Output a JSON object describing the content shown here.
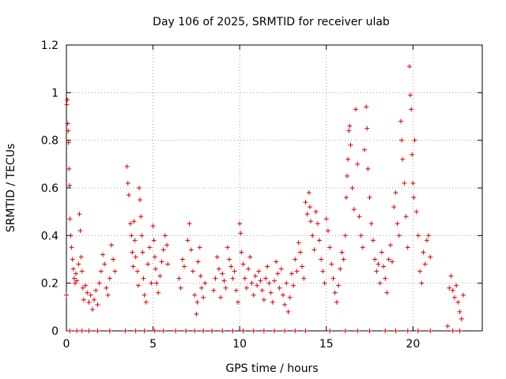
{
  "chart_data": {
    "type": "scatter",
    "title": "Day 106 of 2025, SRMTID for receiver ulab",
    "xlabel": "GPS time / hours",
    "ylabel": "SRMTID / TECUs",
    "xlim": [
      0,
      24
    ],
    "ylim": [
      0,
      1.2
    ],
    "xticks": [
      0,
      5,
      10,
      15,
      20
    ],
    "yticks": [
      0,
      0.2,
      0.4,
      0.6,
      0.8,
      1,
      1.2
    ],
    "xtick_labels": [
      "0",
      "5",
      "10",
      "15",
      "20"
    ],
    "ytick_labels": [
      "0",
      "0.2",
      "0.4",
      "0.6",
      "0.8",
      "1",
      "1.2"
    ],
    "grid": true,
    "marker": "plus",
    "color": "#e00000",
    "series": [
      {
        "name": "SRMTID",
        "points": [
          [
            0.0,
            0.15
          ],
          [
            0.02,
            0.95
          ],
          [
            0.05,
            0.97
          ],
          [
            0.08,
            0.87
          ],
          [
            0.1,
            0.84
          ],
          [
            0.12,
            0.79
          ],
          [
            0.15,
            0.68
          ],
          [
            0.18,
            0.61
          ],
          [
            0.2,
            0.47
          ],
          [
            0.25,
            0.4
          ],
          [
            0.3,
            0.35
          ],
          [
            0.35,
            0.3
          ],
          [
            0.4,
            0.26
          ],
          [
            0.45,
            0.22
          ],
          [
            0.5,
            0.2
          ],
          [
            0.55,
            0.24
          ],
          [
            0.6,
            0.21
          ],
          [
            0.7,
            0.28
          ],
          [
            0.75,
            0.49
          ],
          [
            0.8,
            0.42
          ],
          [
            0.85,
            0.31
          ],
          [
            0.9,
            0.25
          ],
          [
            0.95,
            0.18
          ],
          [
            1.0,
            0.13
          ],
          [
            1.1,
            0.19
          ],
          [
            1.2,
            0.16
          ],
          [
            1.3,
            0.12
          ],
          [
            1.4,
            0.15
          ],
          [
            1.5,
            0.09
          ],
          [
            1.6,
            0.13
          ],
          [
            1.7,
            0.17
          ],
          [
            1.8,
            0.11
          ],
          [
            1.9,
            0.2
          ],
          [
            2.0,
            0.25
          ],
          [
            2.1,
            0.32
          ],
          [
            2.2,
            0.28
          ],
          [
            2.3,
            0.18
          ],
          [
            2.4,
            0.15
          ],
          [
            2.5,
            0.22
          ],
          [
            2.6,
            0.36
          ],
          [
            2.7,
            0.3
          ],
          [
            2.8,
            0.25
          ],
          [
            3.5,
            0.69
          ],
          [
            3.55,
            0.62
          ],
          [
            3.6,
            0.57
          ],
          [
            3.7,
            0.45
          ],
          [
            3.75,
            0.4
          ],
          [
            3.8,
            0.33
          ],
          [
            3.85,
            0.27
          ],
          [
            3.9,
            0.46
          ],
          [
            3.95,
            0.38
          ],
          [
            4.0,
            0.31
          ],
          [
            4.1,
            0.25
          ],
          [
            4.15,
            0.19
          ],
          [
            4.2,
            0.6
          ],
          [
            4.25,
            0.55
          ],
          [
            4.3,
            0.48
          ],
          [
            4.35,
            0.4
          ],
          [
            4.4,
            0.33
          ],
          [
            4.45,
            0.22
          ],
          [
            4.5,
            0.15
          ],
          [
            4.6,
            0.12
          ],
          [
            4.7,
            0.28
          ],
          [
            4.8,
            0.35
          ],
          [
            4.9,
            0.2
          ],
          [
            5.0,
            0.44
          ],
          [
            5.05,
            0.38
          ],
          [
            5.1,
            0.31
          ],
          [
            5.15,
            0.26
          ],
          [
            5.2,
            0.2
          ],
          [
            5.3,
            0.16
          ],
          [
            5.4,
            0.23
          ],
          [
            5.5,
            0.29
          ],
          [
            5.6,
            0.34
          ],
          [
            5.7,
            0.4
          ],
          [
            5.8,
            0.36
          ],
          [
            5.85,
            0.28
          ],
          [
            6.5,
            0.22
          ],
          [
            6.6,
            0.18
          ],
          [
            6.7,
            0.3
          ],
          [
            6.8,
            0.27
          ],
          [
            7.0,
            0.38
          ],
          [
            7.1,
            0.45
          ],
          [
            7.2,
            0.34
          ],
          [
            7.3,
            0.25
          ],
          [
            7.4,
            0.15
          ],
          [
            7.5,
            0.07
          ],
          [
            7.55,
            0.12
          ],
          [
            7.6,
            0.29
          ],
          [
            7.7,
            0.35
          ],
          [
            7.75,
            0.23
          ],
          [
            7.8,
            0.18
          ],
          [
            7.9,
            0.14
          ],
          [
            8.0,
            0.2
          ],
          [
            8.5,
            0.17
          ],
          [
            8.6,
            0.22
          ],
          [
            8.7,
            0.31
          ],
          [
            8.8,
            0.26
          ],
          [
            8.9,
            0.14
          ],
          [
            9.0,
            0.24
          ],
          [
            9.1,
            0.21
          ],
          [
            9.2,
            0.18
          ],
          [
            9.3,
            0.35
          ],
          [
            9.4,
            0.3
          ],
          [
            9.5,
            0.27
          ],
          [
            9.6,
            0.22
          ],
          [
            9.7,
            0.25
          ],
          [
            9.8,
            0.17
          ],
          [
            9.9,
            0.12
          ],
          [
            10.0,
            0.45
          ],
          [
            10.05,
            0.41
          ],
          [
            10.1,
            0.33
          ],
          [
            10.2,
            0.28
          ],
          [
            10.3,
            0.22
          ],
          [
            10.4,
            0.18
          ],
          [
            10.5,
            0.26
          ],
          [
            10.6,
            0.31
          ],
          [
            10.7,
            0.2
          ],
          [
            10.8,
            0.15
          ],
          [
            10.9,
            0.23
          ],
          [
            11.0,
            0.19
          ],
          [
            11.1,
            0.25
          ],
          [
            11.2,
            0.21
          ],
          [
            11.3,
            0.17
          ],
          [
            11.4,
            0.13
          ],
          [
            11.5,
            0.22
          ],
          [
            11.6,
            0.27
          ],
          [
            11.7,
            0.2
          ],
          [
            11.8,
            0.16
          ],
          [
            11.9,
            0.12
          ],
          [
            12.0,
            0.21
          ],
          [
            12.1,
            0.29
          ],
          [
            12.2,
            0.24
          ],
          [
            12.3,
            0.18
          ],
          [
            12.4,
            0.26
          ],
          [
            12.5,
            0.15
          ],
          [
            12.6,
            0.11
          ],
          [
            12.7,
            0.2
          ],
          [
            12.8,
            0.08
          ],
          [
            12.9,
            0.14
          ],
          [
            13.0,
            0.24
          ],
          [
            13.1,
            0.19
          ],
          [
            13.2,
            0.3
          ],
          [
            13.3,
            0.25
          ],
          [
            13.4,
            0.37
          ],
          [
            13.5,
            0.33
          ],
          [
            13.6,
            0.27
          ],
          [
            13.7,
            0.22
          ],
          [
            13.8,
            0.54
          ],
          [
            13.9,
            0.49
          ],
          [
            14.0,
            0.58
          ],
          [
            14.05,
            0.52
          ],
          [
            14.1,
            0.46
          ],
          [
            14.2,
            0.4
          ],
          [
            14.3,
            0.34
          ],
          [
            14.4,
            0.5
          ],
          [
            14.5,
            0.45
          ],
          [
            14.6,
            0.38
          ],
          [
            14.7,
            0.3
          ],
          [
            14.8,
            0.25
          ],
          [
            14.9,
            0.2
          ],
          [
            15.0,
            0.47
          ],
          [
            15.1,
            0.42
          ],
          [
            15.2,
            0.35
          ],
          [
            15.3,
            0.28
          ],
          [
            15.4,
            0.22
          ],
          [
            15.5,
            0.16
          ],
          [
            15.6,
            0.12
          ],
          [
            15.7,
            0.19
          ],
          [
            15.8,
            0.26
          ],
          [
            15.9,
            0.33
          ],
          [
            16.0,
            0.3
          ],
          [
            16.1,
            0.4
          ],
          [
            16.15,
            0.56
          ],
          [
            16.2,
            0.65
          ],
          [
            16.25,
            0.72
          ],
          [
            16.3,
            0.84
          ],
          [
            16.35,
            0.86
          ],
          [
            16.4,
            0.78
          ],
          [
            16.5,
            0.6
          ],
          [
            16.6,
            0.51
          ],
          [
            16.7,
            0.93
          ],
          [
            16.8,
            0.7
          ],
          [
            16.9,
            0.48
          ],
          [
            17.0,
            0.4
          ],
          [
            17.1,
            0.35
          ],
          [
            17.2,
            0.76
          ],
          [
            17.3,
            0.94
          ],
          [
            17.35,
            0.85
          ],
          [
            17.4,
            0.68
          ],
          [
            17.5,
            0.56
          ],
          [
            17.6,
            0.45
          ],
          [
            17.7,
            0.38
          ],
          [
            17.8,
            0.3
          ],
          [
            17.9,
            0.25
          ],
          [
            18.0,
            0.28
          ],
          [
            18.1,
            0.2
          ],
          [
            18.2,
            0.33
          ],
          [
            18.3,
            0.27
          ],
          [
            18.4,
            0.22
          ],
          [
            18.5,
            0.16
          ],
          [
            18.6,
            0.3
          ],
          [
            18.7,
            0.36
          ],
          [
            18.8,
            0.29
          ],
          [
            18.9,
            0.52
          ],
          [
            19.0,
            0.58
          ],
          [
            19.1,
            0.45
          ],
          [
            19.2,
            0.4
          ],
          [
            19.3,
            0.88
          ],
          [
            19.35,
            0.8
          ],
          [
            19.4,
            0.72
          ],
          [
            19.5,
            0.62
          ],
          [
            19.6,
            0.48
          ],
          [
            19.7,
            0.35
          ],
          [
            19.8,
            1.11
          ],
          [
            19.85,
            0.99
          ],
          [
            19.9,
            0.93
          ],
          [
            19.95,
            0.74
          ],
          [
            20.0,
            0.62
          ],
          [
            20.05,
            0.56
          ],
          [
            20.1,
            0.8
          ],
          [
            20.2,
            0.5
          ],
          [
            20.3,
            0.4
          ],
          [
            20.4,
            0.25
          ],
          [
            20.5,
            0.2
          ],
          [
            20.6,
            0.33
          ],
          [
            20.7,
            0.28
          ],
          [
            20.8,
            0.38
          ],
          [
            20.9,
            0.4
          ],
          [
            21.0,
            0.31
          ],
          [
            22.0,
            0.02
          ],
          [
            22.1,
            0.18
          ],
          [
            22.2,
            0.23
          ],
          [
            22.3,
            0.17
          ],
          [
            22.4,
            0.14
          ],
          [
            22.5,
            0.19
          ],
          [
            22.6,
            0.12
          ],
          [
            22.7,
            0.08
          ],
          [
            22.8,
            0.05
          ],
          [
            22.9,
            0.15
          ],
          [
            0.2,
            0.0
          ],
          [
            0.6,
            0.0
          ],
          [
            0.9,
            0.0
          ],
          [
            1.3,
            0.0
          ],
          [
            1.8,
            0.0
          ],
          [
            2.5,
            0.0
          ],
          [
            3.4,
            0.0
          ],
          [
            4.0,
            0.0
          ],
          [
            4.5,
            0.0
          ],
          [
            5.1,
            0.0
          ],
          [
            5.6,
            0.0
          ],
          [
            6.3,
            0.0
          ],
          [
            6.9,
            0.0
          ],
          [
            7.4,
            0.0
          ],
          [
            7.9,
            0.0
          ],
          [
            8.4,
            0.0
          ],
          [
            9.0,
            0.0
          ],
          [
            9.6,
            0.0
          ],
          [
            10.2,
            0.0
          ],
          [
            10.8,
            0.0
          ],
          [
            11.4,
            0.0
          ],
          [
            12.0,
            0.0
          ],
          [
            12.6,
            0.0
          ],
          [
            13.2,
            0.0
          ],
          [
            13.8,
            0.0
          ],
          [
            15.2,
            0.0
          ],
          [
            16.1,
            0.0
          ],
          [
            16.8,
            0.0
          ],
          [
            17.5,
            0.0
          ],
          [
            18.4,
            0.0
          ],
          [
            19.0,
            0.0
          ],
          [
            19.7,
            0.0
          ],
          [
            20.3,
            0.0
          ],
          [
            21.0,
            0.0
          ],
          [
            22.3,
            0.0
          ],
          [
            22.7,
            0.0
          ]
        ]
      }
    ]
  }
}
